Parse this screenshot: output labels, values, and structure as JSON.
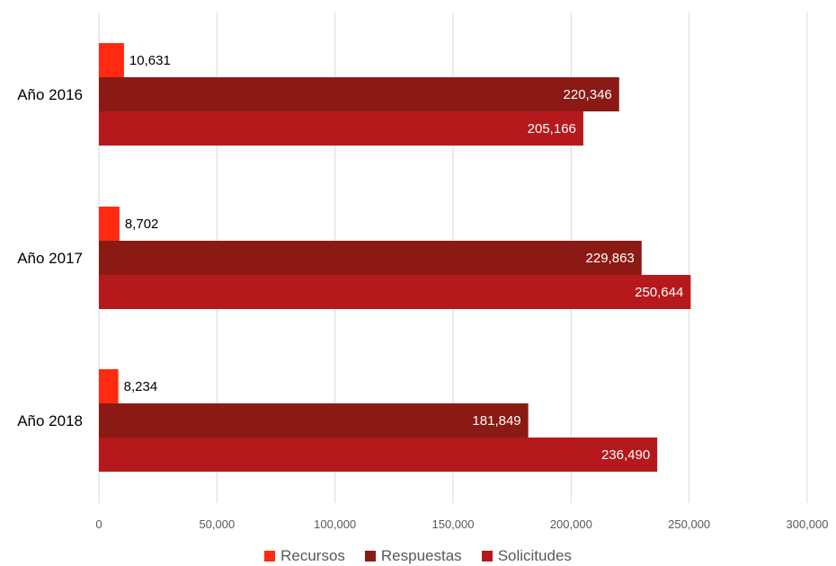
{
  "chart_data": {
    "type": "bar",
    "orientation": "horizontal",
    "categories": [
      "Año 2016",
      "Año 2017",
      "Año 2018"
    ],
    "series": [
      {
        "name": "Recursos",
        "color": "#FF2A10",
        "values": [
          10631,
          8702,
          8234
        ],
        "labels": [
          "10,631",
          "8,702",
          "8,234"
        ]
      },
      {
        "name": "Respuestas",
        "color": "#8B1A14",
        "values": [
          220346,
          229863,
          181849
        ],
        "labels": [
          "220,346",
          "229,863",
          "181,849"
        ]
      },
      {
        "name": "Solicitudes",
        "color": "#B5191B",
        "values": [
          205166,
          250644,
          236490
        ],
        "labels": [
          "205,166",
          "250,644",
          "236,490"
        ]
      }
    ],
    "xlim": [
      0,
      300000
    ],
    "xticks": [
      0,
      50000,
      100000,
      150000,
      200000,
      250000,
      300000
    ],
    "xtick_labels": [
      "0",
      "50,000",
      "100,000",
      "150,000",
      "200,000",
      "250,000",
      "300,000"
    ],
    "grid": "vertical",
    "legend_position": "bottom"
  }
}
